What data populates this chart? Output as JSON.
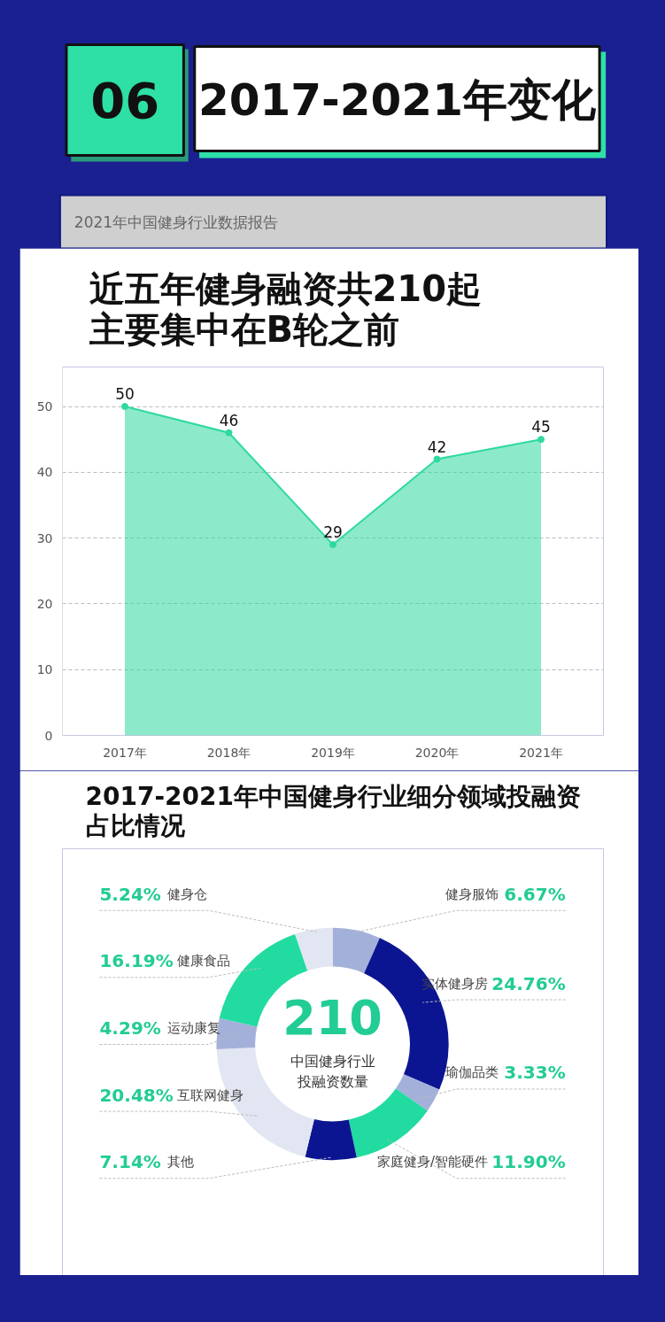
{
  "chart_data": [
    {
      "type": "other",
      "title": "2017-2021年变化",
      "annotations": [
        "06",
        "2021年中国健身行业数据报告"
      ]
    },
    {
      "type": "area",
      "title": "近五年健身融资共210起主要集中在B轮之前",
      "categories": [
        "2017年",
        "2018年",
        "2019年",
        "2020年",
        "2021年"
      ],
      "values": [
        50,
        46,
        29,
        42,
        45
      ],
      "color": "#2ed9a0",
      "ylim": [
        0,
        56
      ],
      "yticks": [
        0,
        10,
        20,
        30,
        40,
        50
      ],
      "grid": "y",
      "marker": "circle",
      "data_labels": true
    },
    {
      "type": "donut",
      "title": "2017-2021年中国健身行业细分领域投融资占比情况",
      "categories": [
        "健身服饰",
        "实体健身房",
        "瑜伽品类",
        "家庭健身/智能硬件",
        "其他",
        "互联网健身",
        "运动康复",
        "健康食品",
        "健身仓"
      ],
      "values": [
        6.67,
        24.76,
        3.33,
        11.9,
        7.14,
        20.48,
        4.29,
        16.19,
        5.24
      ],
      "value_labels": [
        "6.67%",
        "24.76%",
        "3.33%",
        "11.90%",
        "7.14%",
        "20.48%",
        "4.29%",
        "16.19%",
        "5.24%"
      ],
      "colors": [
        "#a3b1da",
        "#0c1591",
        "#a3b1da",
        "#22dba0",
        "#0c1591",
        "#e2e6f2",
        "#a3b1da",
        "#22dba0",
        "#e2e6f2"
      ],
      "annotations": [
        "210",
        "中国健身行业投融资数量"
      ]
    }
  ]
}
